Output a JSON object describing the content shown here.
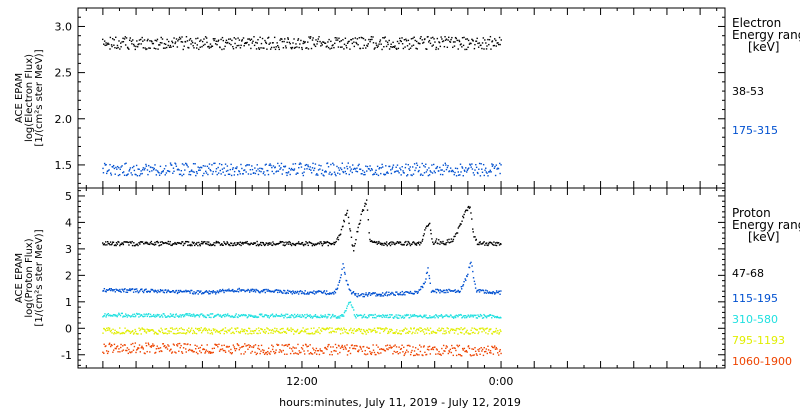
{
  "x_axis_label": "hours:minutes, July 11, 2019 - July 12, 2019",
  "x_tick_labels": [
    {
      "label": "12:00",
      "t": 12
    },
    {
      "label": "0:00",
      "t": 24
    }
  ],
  "x_range_hours": [
    -1.5,
    37.5
  ],
  "data_range_hours": [
    0,
    24
  ],
  "chart_data": [
    {
      "type": "scatter",
      "panel": "electron",
      "ylabel_lines": [
        "ACE EPAM",
        "log(Electron Flux)",
        "[1/(cm²s ster MeV)]"
      ],
      "ylim": [
        1.25,
        3.2
      ],
      "yticks": [
        1.5,
        2.0,
        2.5,
        3.0
      ],
      "ytick_labels": [
        "1.5",
        "2.0",
        "2.5",
        "3.0"
      ],
      "legend_title_lines": [
        "Electron",
        "Energy ranges",
        "[keV]"
      ],
      "series": [
        {
          "name": "38-53",
          "color": "#000000",
          "profile": [
            [
              0,
              2.82
            ],
            [
              24,
              2.82
            ]
          ],
          "spread": 0.07
        },
        {
          "name": "175-315",
          "color": "#0050d0",
          "profile": [
            [
              0,
              1.45
            ],
            [
              24,
              1.45
            ]
          ],
          "spread": 0.07
        }
      ]
    },
    {
      "type": "scatter",
      "panel": "proton",
      "ylabel_lines": [
        "ACE EPAM",
        "log(Proton Flux)",
        "[1/(cm²s ster MeV)]"
      ],
      "ylim": [
        -1.5,
        5.3
      ],
      "yticks": [
        -1,
        0,
        1,
        2,
        3,
        4,
        5
      ],
      "ytick_labels": [
        "-1",
        "0",
        "1",
        "2",
        "3",
        "4",
        "5"
      ],
      "legend_title_lines": [
        "Proton",
        "Energy ranges",
        "[keV]"
      ],
      "series": [
        {
          "name": "47-68",
          "color": "#000000",
          "profile": [
            [
              0,
              3.2
            ],
            [
              14.0,
              3.2
            ],
            [
              14.3,
              3.5
            ],
            [
              14.6,
              4.2
            ],
            [
              14.75,
              4.5
            ],
            [
              14.9,
              3.7
            ],
            [
              15.1,
              2.9
            ],
            [
              15.25,
              3.4
            ],
            [
              15.6,
              4.3
            ],
            [
              15.9,
              4.8
            ],
            [
              16.1,
              3.3
            ],
            [
              16.3,
              3.2
            ],
            [
              19.2,
              3.2
            ],
            [
              19.45,
              3.8
            ],
            [
              19.7,
              4.0
            ],
            [
              19.9,
              3.1
            ],
            [
              20.1,
              3.3
            ],
            [
              20.6,
              3.2
            ],
            [
              21.2,
              3.4
            ],
            [
              21.6,
              4.0
            ],
            [
              21.9,
              4.5
            ],
            [
              22.15,
              4.6
            ],
            [
              22.35,
              3.5
            ],
            [
              22.6,
              3.2
            ],
            [
              24,
              3.2
            ]
          ],
          "spread": 0.08
        },
        {
          "name": "115-195",
          "color": "#0050d0",
          "profile": [
            [
              0,
              1.45
            ],
            [
              6.5,
              1.35
            ],
            [
              8.0,
              1.45
            ],
            [
              12,
              1.35
            ],
            [
              14.0,
              1.35
            ],
            [
              14.3,
              1.8
            ],
            [
              14.5,
              2.5
            ],
            [
              14.65,
              1.8
            ],
            [
              15.0,
              1.35
            ],
            [
              15.3,
              1.25
            ],
            [
              19.0,
              1.35
            ],
            [
              19.4,
              1.7
            ],
            [
              19.6,
              2.3
            ],
            [
              19.8,
              1.4
            ],
            [
              21.5,
              1.4
            ],
            [
              21.9,
              1.9
            ],
            [
              22.2,
              2.5
            ],
            [
              22.5,
              1.4
            ],
            [
              24,
              1.35
            ]
          ],
          "spread": 0.07
        },
        {
          "name": "310-580",
          "color": "#20e0e0",
          "profile": [
            [
              0,
              0.5
            ],
            [
              14.5,
              0.45
            ],
            [
              14.75,
              0.9
            ],
            [
              14.95,
              1.0
            ],
            [
              15.2,
              0.45
            ],
            [
              24,
              0.45
            ]
          ],
          "spread": 0.07
        },
        {
          "name": "795-1193",
          "color": "#e0ee00",
          "profile": [
            [
              0,
              -0.1
            ],
            [
              24,
              -0.1
            ]
          ],
          "spread": 0.12
        },
        {
          "name": "1060-1900",
          "color": "#ee4400",
          "profile": [
            [
              0,
              -0.75
            ],
            [
              24,
              -0.85
            ]
          ],
          "spread": 0.2
        }
      ]
    }
  ]
}
